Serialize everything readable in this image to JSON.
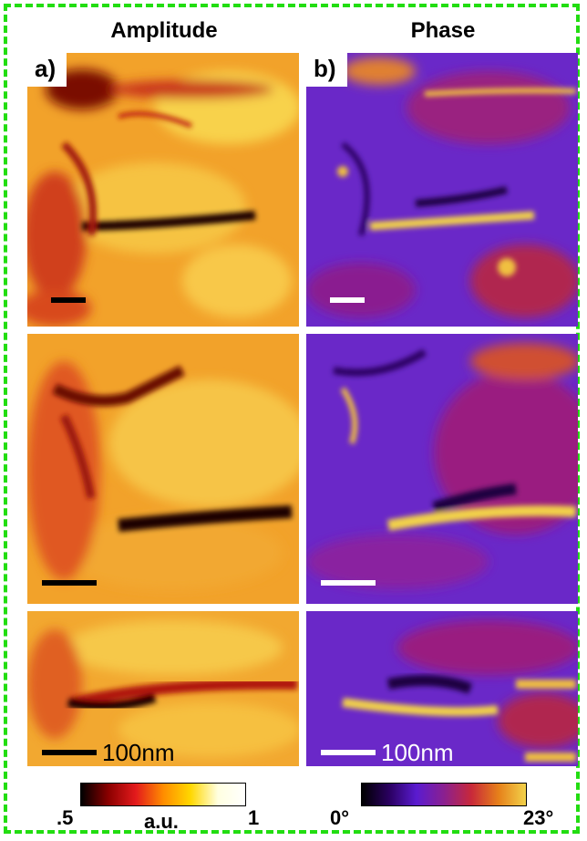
{
  "figure": {
    "columns": [
      {
        "title": "Amplitude",
        "label": "a)"
      },
      {
        "title": "Phase",
        "label": "b)"
      }
    ],
    "scalebar_text": "100nm",
    "colorbars": {
      "amplitude": {
        "min_label": ".5",
        "unit_label": "a.u.",
        "max_label": "1",
        "colors": [
          "#000000",
          "#8b0000",
          "#e31a1c",
          "#ff8c00",
          "#ffd700",
          "#ffffe0",
          "#ffffff"
        ]
      },
      "phase": {
        "min_label": "0°",
        "max_label": "23°",
        "colors": [
          "#000000",
          "#2a0060",
          "#5a1bd0",
          "#8a2090",
          "#c8283a",
          "#e6801a",
          "#f2d24a"
        ]
      }
    },
    "frame_color": "#22dd11"
  }
}
